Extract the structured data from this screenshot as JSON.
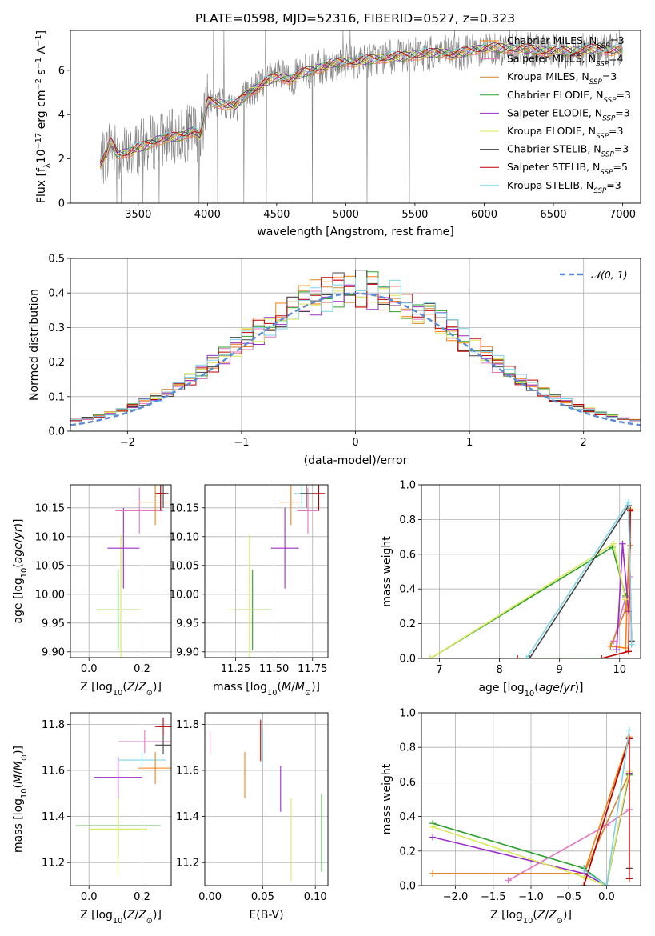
{
  "title": "PLATE=0598, MJD=52316, FIBERID=0527, z=0.323",
  "colors": {
    "Chabrier MILES": "#ff7f0e",
    "Salpeter MILES": "#e377c2",
    "Kroupa MILES": "#d9822b",
    "Chabrier ELODIE": "#2ca02c",
    "Salpeter ELODIE": "#9b2ec8",
    "Kroupa ELODIE": "#dbe85a",
    "Chabrier STELIB": "#444444",
    "Salpeter STELIB": "#c00000",
    "Kroupa STELIB": "#7fd3e6",
    "data": "#808080",
    "gauss": "#5b8bd6"
  },
  "chart_data": [
    {
      "type": "line",
      "panel": "spectrum",
      "title": "PLATE=0598, MJD=52316, FIBERID=0527, z=0.323",
      "xlabel": "wavelength [Angstrom, rest frame]",
      "ylabel": "Flux [f_λ 10^-17 erg cm^-2 s^-1 A^-1]",
      "xlim": [
        3010,
        7130
      ],
      "ylim": [
        0,
        7.8
      ],
      "xticks": [
        "3500",
        "4000",
        "4500",
        "5000",
        "5500",
        "6000",
        "6500",
        "7000"
      ],
      "yticks": [
        "0",
        "2",
        "4",
        "6"
      ],
      "legend_position": "top-right",
      "legend": [
        {
          "label": "Chabrier MILES, N",
          "sub": "SSP",
          "tail": "=3"
        },
        {
          "label": "Salpeter MILES, N",
          "sub": "SSP",
          "tail": "=4"
        },
        {
          "label": "Kroupa MILES, N",
          "sub": "SSP",
          "tail": "=3"
        },
        {
          "label": "Chabrier ELODIE, N",
          "sub": "SSP",
          "tail": "=3"
        },
        {
          "label": "Salpeter ELODIE, N",
          "sub": "SSP",
          "tail": "=3"
        },
        {
          "label": "Kroupa ELODIE, N",
          "sub": "SSP",
          "tail": "=3"
        },
        {
          "label": "Chabrier STELIB, N",
          "sub": "SSP",
          "tail": "=3"
        },
        {
          "label": "Salpeter STELIB, N",
          "sub": "SSP",
          "tail": "=5"
        },
        {
          "label": "Kroupa STELIB, N",
          "sub": "SSP",
          "tail": "=3"
        }
      ],
      "model_continuum": {
        "x": [
          3220,
          3270,
          3300,
          3350,
          3420,
          3500,
          3560,
          3650,
          3800,
          3900,
          3950,
          4000,
          4100,
          4200,
          4300,
          4400,
          4500,
          4600,
          4700,
          4800,
          4900,
          5000,
          5100,
          5200,
          5300,
          5400,
          5500,
          5600,
          5700,
          5800,
          5900,
          6000,
          6200,
          6400,
          6600,
          6800,
          7000
        ],
        "y": [
          1.7,
          2.2,
          2.8,
          2.2,
          2.3,
          2.5,
          2.6,
          2.9,
          3.0,
          3.3,
          3.0,
          4.6,
          4.5,
          4.4,
          5.0,
          5.4,
          5.7,
          5.6,
          5.9,
          6.1,
          6.3,
          6.4,
          6.4,
          6.5,
          6.6,
          6.6,
          6.7,
          6.75,
          6.8,
          6.7,
          6.9,
          7.0,
          7.0,
          6.9,
          6.85,
          6.95,
          6.9
        ]
      }
    },
    {
      "type": "line",
      "panel": "residuals",
      "xlabel": "(data-model)/error",
      "ylabel": "Normed distribution",
      "xlim": [
        -2.5,
        2.5
      ],
      "ylim": [
        0,
        0.5
      ],
      "xticks": [
        "−2",
        "−1",
        "0",
        "1",
        "2"
      ],
      "yticks": [
        "0.0",
        "0.1",
        "0.2",
        "0.3",
        "0.4",
        "0.5"
      ],
      "legend": "𝒩(0, 1)",
      "legend_position": "top-right",
      "grid": true
    },
    {
      "type": "scatter",
      "panel": "age_vs_Z",
      "xlabel": "Z [log10(Z/Z⊙)]",
      "ylabel": "age  [log10(age/yr)]",
      "xlim": [
        -0.07,
        0.31
      ],
      "ylim": [
        9.89,
        10.19
      ],
      "xticks": [
        "0.0",
        "0.2"
      ],
      "yticks": [
        "9.90",
        "9.95",
        "10.00",
        "10.05",
        "10.10",
        "10.15"
      ],
      "grid": true,
      "points": [
        {
          "series": "Chabrier ELODIE",
          "x": 0.11,
          "xerr": 0.08,
          "y": 9.973,
          "yerr": 0.07
        },
        {
          "series": "Kroupa ELODIE",
          "x": 0.12,
          "xerr": 0.08,
          "y": 9.973,
          "yerr": 0.13
        },
        {
          "series": "Salpeter ELODIE",
          "x": 0.13,
          "xerr": 0.06,
          "y": 10.08,
          "yerr": 0.07
        },
        {
          "series": "Salpeter MILES",
          "x": 0.19,
          "xerr": 0.09,
          "y": 10.145,
          "yerr": 0.04
        },
        {
          "series": "Chabrier MILES",
          "x": 0.25,
          "xerr": 0.06,
          "y": 10.16,
          "yerr": 0.04
        },
        {
          "series": "Kroupa STELIB",
          "x": 0.27,
          "xerr": 0.02,
          "y": 10.175,
          "yerr": 0.03
        },
        {
          "series": "Chabrier STELIB",
          "x": 0.28,
          "xerr": 0.02,
          "y": 10.175,
          "yerr": 0.025
        },
        {
          "series": "Salpeter STELIB",
          "x": 0.27,
          "xerr": 0.02,
          "y": 10.175,
          "yerr": 0.03
        }
      ]
    },
    {
      "type": "scatter",
      "panel": "age_vs_mass",
      "xlabel": "mass [log10(M/M⊙)]",
      "ylabel": "",
      "xlim": [
        11.05,
        11.85
      ],
      "ylim": [
        9.89,
        10.19
      ],
      "xticks": [
        "11.25",
        "11.50",
        "11.75"
      ],
      "yticks": [
        "9.90",
        "9.95",
        "10.00",
        "10.05",
        "10.10",
        "10.15"
      ],
      "grid": true,
      "points": [
        {
          "series": "Chabrier ELODIE",
          "x": 11.36,
          "xerr": 0.12,
          "y": 9.973,
          "yerr": 0.07
        },
        {
          "series": "Kroupa ELODIE",
          "x": 11.34,
          "xerr": 0.13,
          "y": 9.973,
          "yerr": 0.13
        },
        {
          "series": "Salpeter ELODIE",
          "x": 11.57,
          "xerr": 0.09,
          "y": 10.08,
          "yerr": 0.07
        },
        {
          "series": "Chabrier MILES",
          "x": 11.61,
          "xerr": 0.07,
          "y": 10.16,
          "yerr": 0.04
        },
        {
          "series": "Salpeter MILES",
          "x": 11.72,
          "xerr": 0.07,
          "y": 10.145,
          "yerr": 0.04
        },
        {
          "series": "Kroupa STELIB",
          "x": 11.68,
          "xerr": 0.05,
          "y": 10.175,
          "yerr": 0.025
        },
        {
          "series": "Chabrier STELIB",
          "x": 11.71,
          "xerr": 0.04,
          "y": 10.175,
          "yerr": 0.025
        },
        {
          "series": "Salpeter STELIB",
          "x": 11.79,
          "xerr": 0.04,
          "y": 10.175,
          "yerr": 0.03
        }
      ]
    },
    {
      "type": "line",
      "panel": "weight_vs_age",
      "xlabel": "age  [log10(age/yr)]",
      "ylabel": "mass weight",
      "xlim": [
        6.7,
        10.35
      ],
      "ylim": [
        0,
        1.0
      ],
      "xticks": [
        "7",
        "8",
        "9",
        "10"
      ],
      "yticks": [
        "0.0",
        "0.2",
        "0.4",
        "0.6",
        "0.8",
        "1.0"
      ],
      "grid": true,
      "series": [
        {
          "name": "Chabrier MILES",
          "x": [
            9.85,
            10.1,
            10.18
          ],
          "y": [
            0.07,
            0.06,
            0.86
          ]
        },
        {
          "name": "Salpeter MILES",
          "x": [
            9.9,
            10.1,
            10.18
          ],
          "y": [
            0.1,
            0.35,
            0.47
          ]
        },
        {
          "name": "Kroupa MILES",
          "x": [
            9.85,
            10.1,
            10.18
          ],
          "y": [
            0.07,
            0.28,
            0.65
          ]
        },
        {
          "name": "Chabrier ELODIE",
          "x": [
            6.85,
            9.88,
            10.1
          ],
          "y": [
            0.0,
            0.64,
            0.36
          ]
        },
        {
          "name": "Salpeter ELODIE",
          "x": [
            9.95,
            10.05,
            10.15
          ],
          "y": [
            0.05,
            0.66,
            0.27
          ]
        },
        {
          "name": "Kroupa ELODIE",
          "x": [
            6.85,
            9.9,
            10.1
          ],
          "y": [
            0.0,
            0.66,
            0.34
          ]
        },
        {
          "name": "Chabrier STELIB",
          "x": [
            8.5,
            10.15,
            10.2
          ],
          "y": [
            0.0,
            0.88,
            0.1
          ]
        },
        {
          "name": "Salpeter STELIB",
          "x": [
            8.3,
            9.7,
            10.15,
            10.18
          ],
          "y": [
            0.0,
            0.0,
            0.04,
            0.85
          ]
        },
        {
          "name": "Kroupa STELIB",
          "x": [
            8.45,
            10.15,
            10.2
          ],
          "y": [
            0.0,
            0.9,
            0.08
          ]
        }
      ]
    },
    {
      "type": "scatter",
      "panel": "mass_vs_Z",
      "xlabel": "Z [log10(Z/Z⊙)]",
      "ylabel": "mass [log10(M/M⊙)]",
      "xlim": [
        -0.07,
        0.31
      ],
      "ylim": [
        11.1,
        11.85
      ],
      "xticks": [
        "0.0",
        "0.2"
      ],
      "yticks": [
        "11.2",
        "11.4",
        "11.6",
        "11.8"
      ],
      "grid": true,
      "points": [
        {
          "series": "Chabrier ELODIE",
          "x": 0.11,
          "xerr": 0.16,
          "y": 11.36,
          "yerr": 0.13
        },
        {
          "series": "Kroupa ELODIE",
          "x": 0.11,
          "xerr": 0.11,
          "y": 11.345,
          "yerr": 0.2
        },
        {
          "series": "Salpeter ELODIE",
          "x": 0.11,
          "xerr": 0.09,
          "y": 11.57,
          "yerr": 0.09
        },
        {
          "series": "Kroupa STELIB",
          "x": 0.2,
          "xerr": 0.09,
          "y": 11.645,
          "yerr": 0.04
        },
        {
          "series": "Chabrier MILES",
          "x": 0.25,
          "xerr": 0.065,
          "y": 11.61,
          "yerr": 0.07
        },
        {
          "series": "Salpeter MILES",
          "x": 0.21,
          "xerr": 0.1,
          "y": 11.725,
          "yerr": 0.05
        },
        {
          "series": "Chabrier STELIB",
          "x": 0.28,
          "xerr": 0.03,
          "y": 11.71,
          "yerr": 0.04
        },
        {
          "series": "Salpeter STELIB",
          "x": 0.28,
          "xerr": 0.03,
          "y": 11.79,
          "yerr": 0.04
        }
      ]
    },
    {
      "type": "scatter",
      "panel": "mass_vs_ebv",
      "xlabel": "E(B-V)",
      "ylabel": "",
      "xlim": [
        -0.005,
        0.112
      ],
      "ylim": [
        11.1,
        11.85
      ],
      "xticks": [
        "0.00",
        "0.05",
        "0.10"
      ],
      "yticks": [
        "11.2",
        "11.4",
        "11.6",
        "11.8"
      ],
      "grid": true,
      "points": [
        {
          "series": "Salpeter MILES",
          "x": 0.0,
          "y": 11.72,
          "yerr": 0.05
        },
        {
          "series": "Chabrier MILES",
          "x": 0.033,
          "y": 11.58,
          "yerr": 0.1
        },
        {
          "series": "Salpeter STELIB",
          "x": 0.048,
          "y": 11.73,
          "yerr": 0.09
        },
        {
          "series": "Kroupa STELIB",
          "x": 0.05,
          "y": 11.7,
          "yerr": 0.07
        },
        {
          "series": "Salpeter ELODIE",
          "x": 0.067,
          "y": 11.52,
          "yerr": 0.1
        },
        {
          "series": "Kroupa ELODIE",
          "x": 0.077,
          "y": 11.3,
          "yerr": 0.18
        },
        {
          "series": "Chabrier ELODIE",
          "x": 0.106,
          "y": 11.33,
          "yerr": 0.17
        }
      ]
    },
    {
      "type": "line",
      "panel": "weight_vs_Z",
      "xlabel": "Z [log10(Z/Z⊙)]",
      "ylabel": "mass weight",
      "xlim": [
        -2.45,
        0.45
      ],
      "ylim": [
        0,
        1.0
      ],
      "xticks": [
        "−2.0",
        "−1.5",
        "−1.0",
        "−0.5",
        "0.0"
      ],
      "yticks": [
        "0.0",
        "0.2",
        "0.4",
        "0.6",
        "0.8",
        "1.0"
      ],
      "grid": true,
      "series": [
        {
          "name": "Chabrier MILES",
          "x": [
            -2.3,
            -0.3,
            0.3
          ],
          "y": [
            0.07,
            0.07,
            0.86
          ]
        },
        {
          "name": "Salpeter MILES",
          "x": [
            -1.3,
            0.0,
            0.3
          ],
          "y": [
            0.03,
            0.35,
            0.44
          ]
        },
        {
          "name": "Kroupa MILES",
          "x": [
            -2.3,
            -0.3,
            0.3
          ],
          "y": [
            0.07,
            0.07,
            0.65
          ]
        },
        {
          "name": "Chabrier ELODIE",
          "x": [
            -2.3,
            -0.3,
            0.0,
            0.3
          ],
          "y": [
            0.36,
            0.1,
            0.0,
            0.64
          ]
        },
        {
          "name": "Salpeter ELODIE",
          "x": [
            -2.3,
            -0.3,
            0.0,
            0.3
          ],
          "y": [
            0.28,
            0.07,
            0.0,
            0.65
          ]
        },
        {
          "name": "Kroupa ELODIE",
          "x": [
            -2.3,
            -0.3,
            0.0,
            0.3
          ],
          "y": [
            0.34,
            0.05,
            0.0,
            0.66
          ]
        },
        {
          "name": "Chabrier STELIB",
          "x": [
            -0.3,
            0.3,
            0.3
          ],
          "y": [
            0.0,
            0.85,
            0.1
          ]
        },
        {
          "name": "Salpeter STELIB",
          "x": [
            -0.3,
            0.3,
            0.3
          ],
          "y": [
            0.0,
            0.85,
            0.04
          ]
        },
        {
          "name": "Kroupa STELIB",
          "x": [
            -0.3,
            0.0,
            0.3
          ],
          "y": [
            0.09,
            0.0,
            0.9
          ]
        }
      ]
    }
  ]
}
